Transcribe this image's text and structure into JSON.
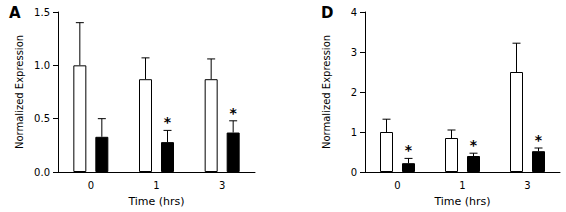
{
  "chart_data": [
    {
      "type": "bar",
      "title": "A",
      "x_label": "Time (hrs)",
      "y_label": "Normalized Expression",
      "categories": [
        "0",
        "1",
        "3"
      ],
      "ylim": [
        0,
        1.5
      ],
      "yticks": [
        {
          "value": 0,
          "label": "0.0"
        },
        {
          "value": 0.5,
          "label": "0.5"
        },
        {
          "value": 1,
          "label": "1.0"
        },
        {
          "value": 1.5,
          "label": "1.5"
        }
      ],
      "grid": false,
      "series": [
        {
          "color": "#ffffff",
          "values": [
            1.0,
            0.87,
            0.87
          ],
          "errors": [
            0.4,
            0.2,
            0.19
          ]
        },
        {
          "color": "#000000",
          "values": [
            0.33,
            0.28,
            0.37
          ],
          "errors": [
            0.17,
            0.11,
            0.11
          ],
          "annotations": [
            {
              "category": "1",
              "text": "*"
            },
            {
              "category": "3",
              "text": "*"
            }
          ]
        }
      ]
    },
    {
      "type": "bar",
      "title": "D",
      "x_label": "Time (hrs)",
      "y_label": "Normalized Expression",
      "categories": [
        "0",
        "1",
        "3"
      ],
      "ylim": [
        0,
        4
      ],
      "yticks": [
        0,
        1,
        2,
        3,
        4
      ],
      "grid": false,
      "series": [
        {
          "color": "#ffffff",
          "values": [
            1.0,
            0.85,
            2.5
          ],
          "errors": [
            0.32,
            0.2,
            0.72
          ]
        },
        {
          "color": "#000000",
          "values": [
            0.22,
            0.4,
            0.52
          ],
          "errors": [
            0.12,
            0.07,
            0.08
          ],
          "annotations": [
            {
              "category": "0",
              "text": "*"
            },
            {
              "category": "1",
              "text": "*"
            },
            {
              "category": "3",
              "text": "*"
            }
          ]
        }
      ]
    }
  ]
}
